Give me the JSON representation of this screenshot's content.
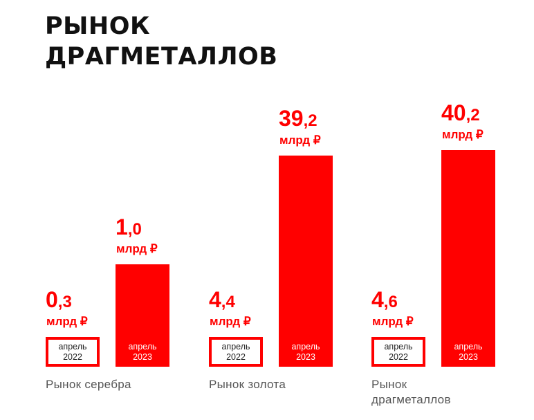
{
  "title_lines": [
    "РЫНОК",
    "ДРАГМЕТАЛЛОВ"
  ],
  "colors": {
    "accent": "#ff0000",
    "title": "#111111",
    "label": "#555555",
    "white": "#ffffff"
  },
  "unit": "млрд ₽",
  "chart_data": {
    "type": "bar",
    "title": "РЫНОК ДРАГМЕТАЛЛОВ",
    "categories": [
      "Рынок серебра",
      "Рынок золота",
      "Рынок драгметаллов"
    ],
    "category_lines": [
      [
        "Рынок серебра"
      ],
      [
        "Рынок золота"
      ],
      [
        "Рынок",
        "драгметаллов"
      ]
    ],
    "series": [
      {
        "name": "апрель 2022",
        "period_lines": [
          "апрель",
          "2022"
        ],
        "values": [
          0.3,
          4.4,
          4.6
        ],
        "value_labels": [
          {
            "int": "0",
            "dec": ",3"
          },
          {
            "int": "4",
            "dec": ",4"
          },
          {
            "int": "4",
            "dec": ",6"
          }
        ],
        "color": "#ffffff",
        "border": "#ff0000"
      },
      {
        "name": "апрель 2023",
        "period_lines": [
          "апрель",
          "2023"
        ],
        "values": [
          1.0,
          39.2,
          40.2
        ],
        "value_labels": [
          {
            "int": "1",
            "dec": ",0"
          },
          {
            "int": "39",
            "dec": ",2"
          },
          {
            "int": "40",
            "dec": ",2"
          }
        ],
        "color": "#ff0000",
        "border": "#ff0000"
      }
    ],
    "ylabel": "",
    "xlabel": "",
    "unit": "млрд ₽",
    "grid": false,
    "legend": "none"
  }
}
